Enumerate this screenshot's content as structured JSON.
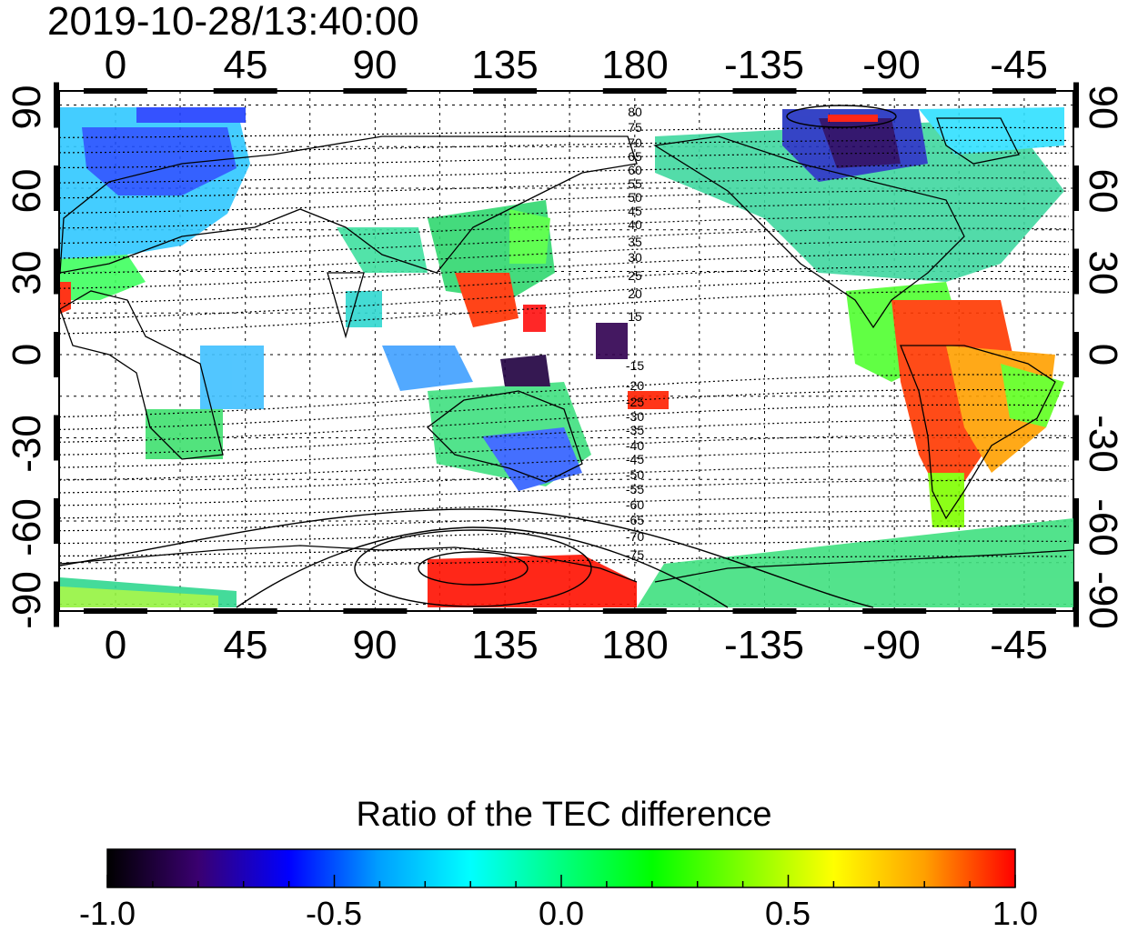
{
  "title": "2019-10-28/13:40:00",
  "map": {
    "lon_ticks": [
      "0",
      "45",
      "90",
      "135",
      "180",
      "-135",
      "-90",
      "-45"
    ],
    "lat_ticks_left": [
      "90",
      "60",
      "30",
      "0",
      "-30",
      "-60",
      "-90"
    ],
    "lat_ticks_right": [
      "90",
      "60",
      "30",
      "0",
      "-30",
      "-60",
      "-90"
    ],
    "contour_labels": [
      "80",
      "75",
      "70",
      "65",
      "60",
      "55",
      "50",
      "45",
      "40",
      "35",
      "30",
      "25",
      "20",
      "15",
      "-15",
      "-20",
      "-25",
      "-30",
      "-35",
      "-40",
      "-45",
      "-50",
      "-55",
      "-60",
      "-65",
      "-70",
      "-75"
    ],
    "grid": true
  },
  "colorbar": {
    "title": "Ratio of the TEC difference",
    "ticks": [
      "-1.0",
      "-0.5",
      "0.0",
      "0.5",
      "1.0"
    ],
    "range": [
      -1.0,
      1.0
    ],
    "colors": [
      "#000000",
      "#3a0070",
      "#0000ff",
      "#00a0ff",
      "#00ffff",
      "#00ff80",
      "#00ff00",
      "#80ff00",
      "#ffff00",
      "#ffa000",
      "#ff0000"
    ]
  }
}
